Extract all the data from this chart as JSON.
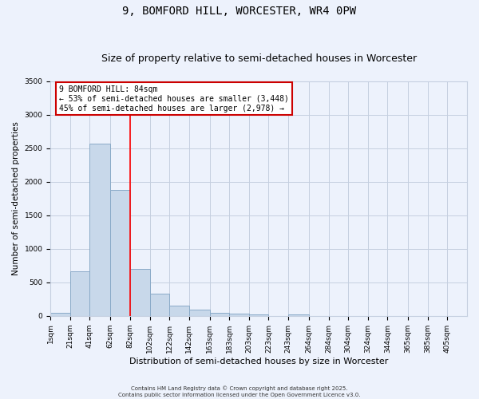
{
  "title_line1": "9, BOMFORD HILL, WORCESTER, WR4 0PW",
  "title_line2": "Size of property relative to semi-detached houses in Worcester",
  "xlabel": "Distribution of semi-detached houses by size in Worcester",
  "ylabel": "Number of semi-detached properties",
  "bar_left_edges": [
    1,
    21,
    41,
    62,
    82,
    102,
    122,
    142,
    163,
    183,
    203,
    223,
    243,
    264,
    284,
    304,
    324,
    344,
    365,
    385
  ],
  "bar_widths": [
    20,
    20,
    21,
    20,
    20,
    20,
    20,
    21,
    20,
    20,
    20,
    20,
    21,
    20,
    20,
    20,
    20,
    21,
    20,
    20
  ],
  "bar_heights": [
    50,
    660,
    2570,
    1880,
    700,
    330,
    150,
    90,
    45,
    30,
    20,
    0,
    25,
    0,
    0,
    0,
    0,
    0,
    0,
    0
  ],
  "bar_color": "#c8d8ea",
  "bar_edge_color": "#8aaac8",
  "red_line_x": 82,
  "ylim": [
    0,
    3500
  ],
  "yticks": [
    0,
    500,
    1000,
    1500,
    2000,
    2500,
    3000,
    3500
  ],
  "xtick_labels": [
    "1sqm",
    "21sqm",
    "41sqm",
    "62sqm",
    "82sqm",
    "102sqm",
    "122sqm",
    "142sqm",
    "163sqm",
    "183sqm",
    "203sqm",
    "223sqm",
    "243sqm",
    "264sqm",
    "284sqm",
    "304sqm",
    "324sqm",
    "344sqm",
    "365sqm",
    "385sqm",
    "405sqm"
  ],
  "xtick_positions": [
    1,
    21,
    41,
    62,
    82,
    102,
    122,
    142,
    163,
    183,
    203,
    223,
    243,
    264,
    284,
    304,
    324,
    344,
    365,
    385,
    405
  ],
  "annotation_title": "9 BOMFORD HILL: 84sqm",
  "annotation_line2": "← 53% of semi-detached houses are smaller (3,448)",
  "annotation_line3": "45% of semi-detached houses are larger (2,978) →",
  "annotation_box_color": "#ffffff",
  "annotation_box_edge_color": "#cc0000",
  "footer_line1": "Contains HM Land Registry data © Crown copyright and database right 2025.",
  "footer_line2": "Contains public sector information licensed under the Open Government Licence v3.0.",
  "bg_color": "#edf2fc",
  "grid_color": "#c5cfe0",
  "title_fontsize": 10,
  "subtitle_fontsize": 9,
  "tick_fontsize": 6.5,
  "annotation_fontsize": 7,
  "xlabel_fontsize": 8,
  "ylabel_fontsize": 7.5
}
